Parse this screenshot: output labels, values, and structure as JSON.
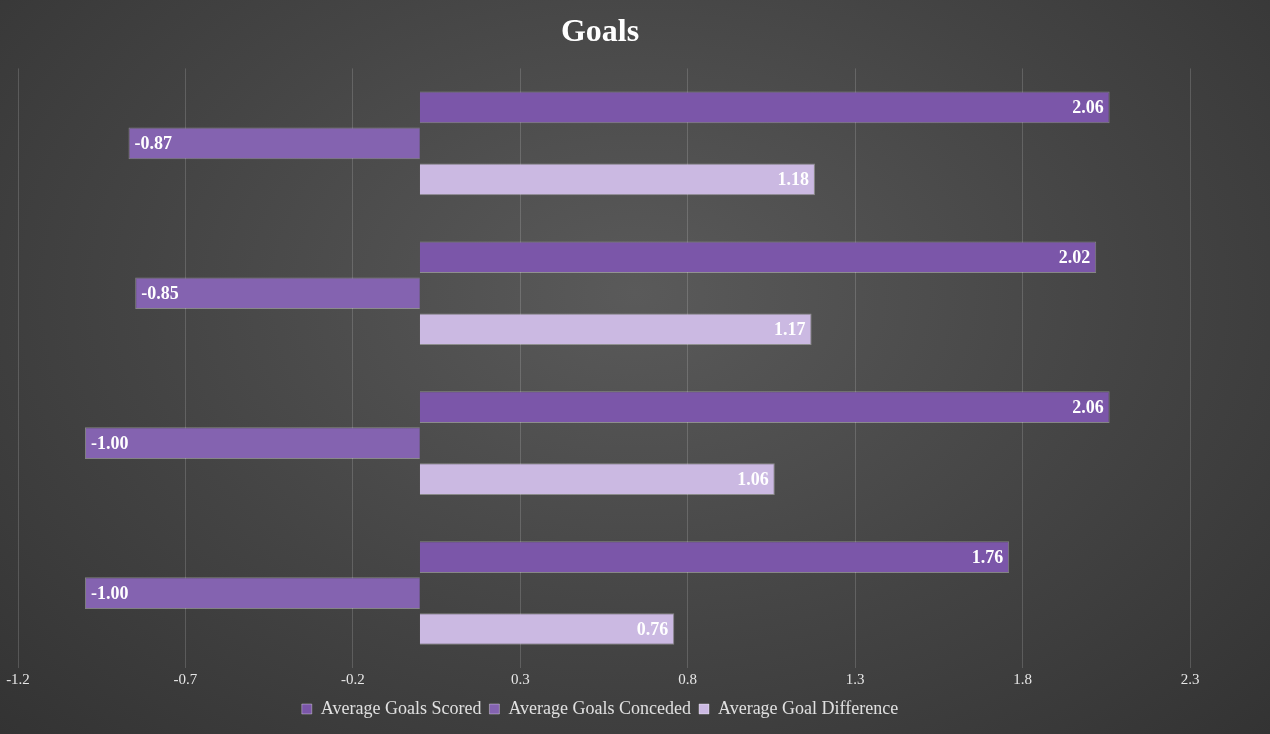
{
  "chart_data": {
    "type": "bar",
    "title": "Goals",
    "orientation": "horizontal",
    "categories": [
      null,
      null,
      null,
      null
    ],
    "series": [
      {
        "name": "Average Goals Scored",
        "color": "#7b56a9",
        "values": [
          2.06,
          2.02,
          2.06,
          1.76
        ],
        "value_labels": [
          "2.06",
          "2.02",
          "2.06",
          "1.76"
        ]
      },
      {
        "name": "Average Goals Conceded",
        "color": "#8463b0",
        "values": [
          -0.87,
          -0.85,
          -1.0,
          -1.0
        ],
        "value_labels": [
          "-0.87",
          "-0.85",
          "-1.00",
          "-1.00"
        ]
      },
      {
        "name": "Average Goal Difference",
        "color": "#cbb9e2",
        "values": [
          1.18,
          1.17,
          1.06,
          0.76
        ],
        "value_labels": [
          "1.18",
          "1.17",
          "1.06",
          "0.76"
        ]
      }
    ],
    "xlim": [
      -1.2,
      2.3
    ],
    "xticks": [
      -1.2,
      -0.7,
      -0.2,
      0.3,
      0.8,
      1.3,
      1.8,
      2.3
    ],
    "grid": true,
    "legend": "bottom",
    "data_labels": true,
    "tick_labels": "x"
  }
}
